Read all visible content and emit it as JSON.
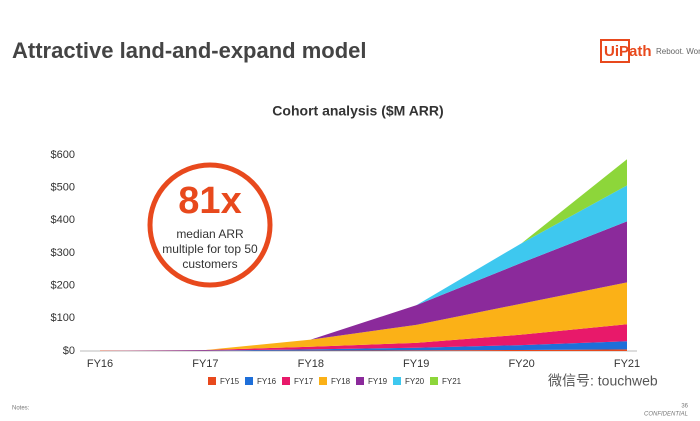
{
  "header": {
    "title": "Attractive land-and-expand model",
    "logo": "UiPath",
    "tagline": "Reboot. Work."
  },
  "chart_data": {
    "type": "stacked_area",
    "title": "Cohort analysis ($M ARR)",
    "categories": [
      "FY16",
      "FY17",
      "FY18",
      "FY19",
      "FY20",
      "FY21"
    ],
    "series": [
      {
        "name": "FY15",
        "color": "#e8491d",
        "values": [
          1,
          0.5,
          1,
          2,
          3,
          5
        ]
      },
      {
        "name": "FY16",
        "color": "#1e6fd9",
        "values": [
          0,
          1,
          4,
          8,
          15,
          25
        ]
      },
      {
        "name": "FY17",
        "color": "#e8196a",
        "values": [
          0,
          1.5,
          8,
          15,
          32,
          52
        ]
      },
      {
        "name": "FY18",
        "color": "#fbb117",
        "values": [
          0,
          0,
          22,
          55,
          95,
          128
        ]
      },
      {
        "name": "FY19",
        "color": "#8b2a9b",
        "values": [
          0,
          0,
          0,
          60,
          125,
          187
        ]
      },
      {
        "name": "FY20",
        "color": "#3ec8ef",
        "values": [
          0,
          0,
          0,
          0,
          60,
          110
        ]
      },
      {
        "name": "FY21",
        "color": "#8dd63a",
        "values": [
          0,
          0,
          0,
          0,
          0,
          80
        ]
      }
    ],
    "ylim": [
      0,
      600
    ],
    "yticks": [
      {
        "value": 0,
        "label": "$0"
      },
      {
        "value": 100,
        "label": "$100"
      },
      {
        "value": 200,
        "label": "$200"
      },
      {
        "value": 300,
        "label": "$300"
      },
      {
        "value": 400,
        "label": "$400"
      },
      {
        "value": 500,
        "label": "$500"
      },
      {
        "value": 600,
        "label": "$600"
      }
    ],
    "annotation": {
      "big": "81x",
      "lines": [
        "median ARR",
        "multiple for top 50",
        "customers"
      ]
    }
  },
  "footer": {
    "notes": "Notes:",
    "page": "36",
    "confidential": "CONFIDENTIAL",
    "watermark": "微信号: touchweb"
  }
}
